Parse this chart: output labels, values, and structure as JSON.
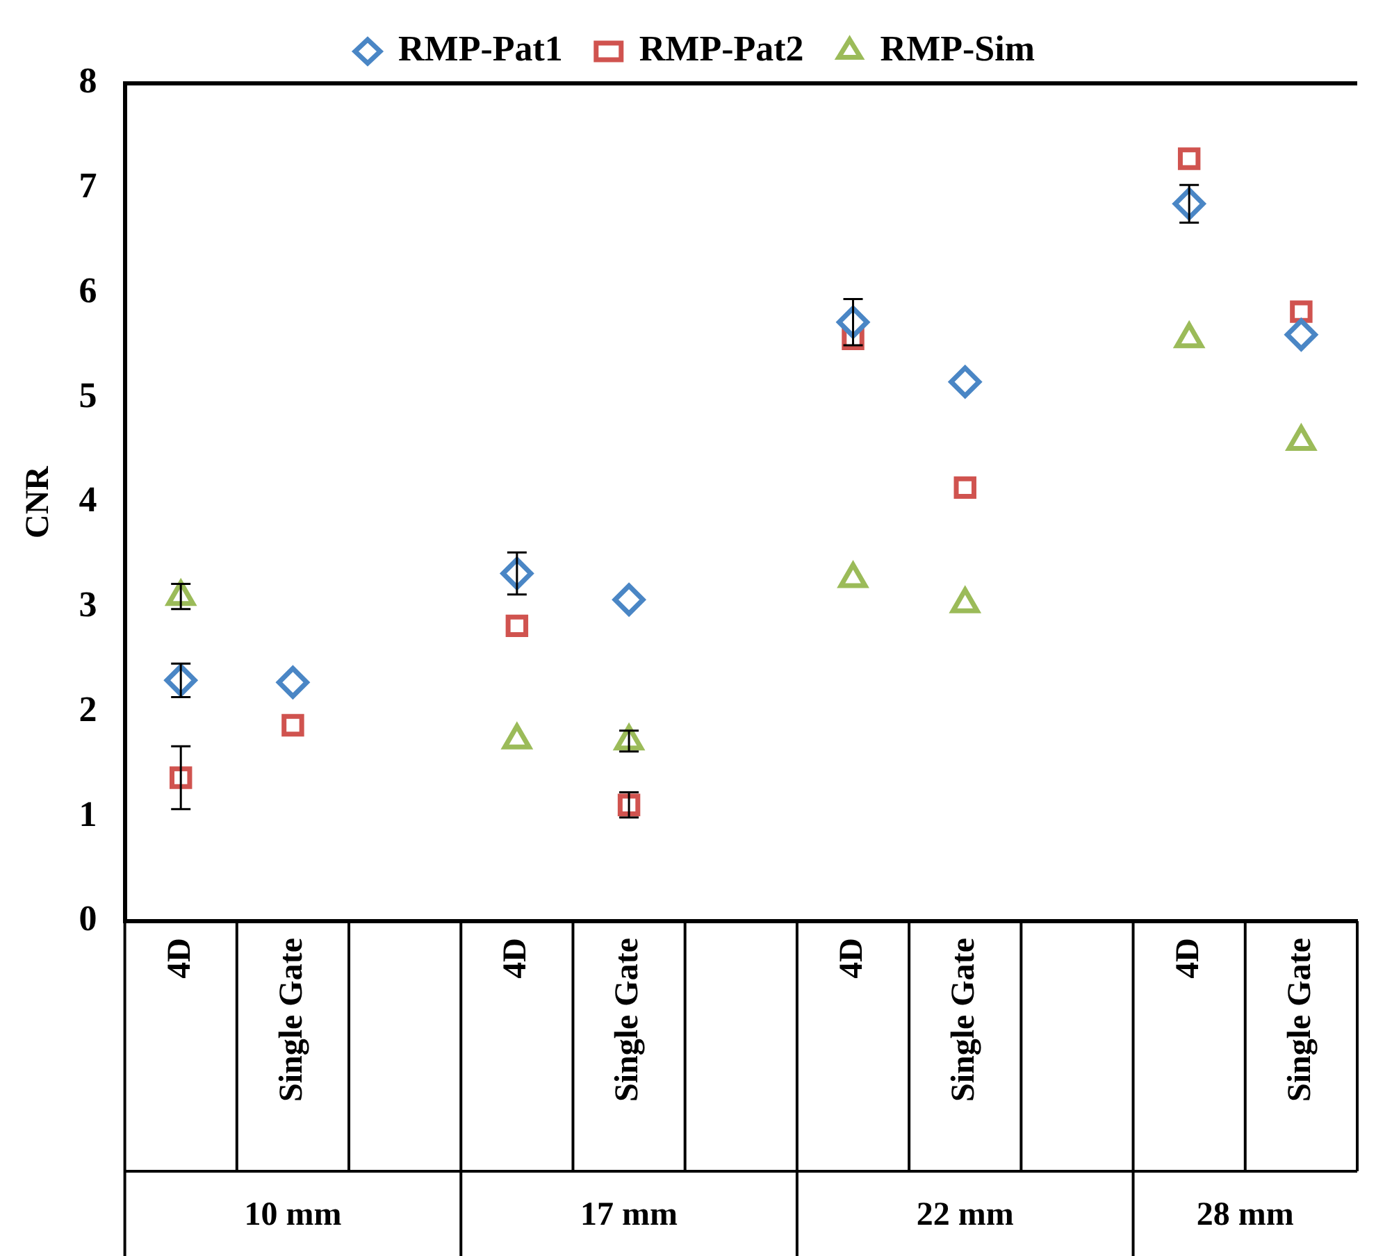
{
  "chart_data": {
    "type": "scatter",
    "ylabel": "CNR",
    "categories": [
      "4D",
      "Single Gate",
      null,
      "4D",
      "Single Gate",
      null,
      "4D",
      "Single Gate",
      null,
      "4D",
      "Single Gate"
    ],
    "series": [
      {
        "name": "RMP-Pat1",
        "color": "#4a86c5",
        "marker": "diamond",
        "values": [
          2.3,
          2.28,
          null,
          3.32,
          3.07,
          null,
          5.72,
          5.15,
          null,
          6.85,
          5.6
        ],
        "errors": [
          0.16,
          null,
          null,
          0.2,
          null,
          null,
          0.22,
          null,
          null,
          0.18,
          null
        ]
      },
      {
        "name": "RMP-Pat2",
        "color": "#d0534f",
        "marker": "square",
        "values": [
          1.37,
          1.87,
          null,
          2.82,
          1.11,
          null,
          5.56,
          4.14,
          null,
          7.28,
          5.82
        ],
        "errors": [
          0.3,
          null,
          null,
          null,
          0.12,
          null,
          null,
          null,
          null,
          null,
          null
        ]
      },
      {
        "name": "RMP-Sim",
        "color": "#9bbb59",
        "marker": "triangle",
        "values": [
          3.1,
          null,
          null,
          1.73,
          1.72,
          null,
          3.27,
          3.03,
          null,
          5.56,
          4.58
        ],
        "errors": [
          0.12,
          null,
          null,
          null,
          0.1,
          null,
          null,
          null,
          null,
          null,
          null
        ]
      }
    ],
    "annotations": [
      "10 mm",
      "17 mm",
      "22 mm",
      "28 mm"
    ],
    "ylim": [
      0,
      8
    ],
    "yticks": [
      0,
      1,
      2,
      3,
      4,
      5,
      6,
      7,
      8
    ],
    "grid": false,
    "legend": "top"
  }
}
